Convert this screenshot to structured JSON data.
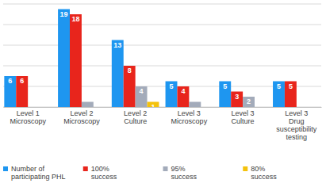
{
  "chart_data": {
    "type": "bar",
    "categories": [
      "Level 1 Microscopy",
      "Level 2 Microscopy",
      "Level 2 Culture",
      "Level 3 Microscopy",
      "Level 3 Culture",
      "Level 3 Drug susceptibility testing"
    ],
    "series": [
      {
        "name": "Number of participating PHL",
        "color": "#1e96f0",
        "values": [
          6,
          19,
          13,
          5,
          5,
          5
        ],
        "value_labels": [
          "6",
          "19",
          "13",
          "5",
          "5",
          "5"
        ]
      },
      {
        "name": "100% success",
        "color": "#e8251c",
        "values": [
          6,
          18,
          8,
          4,
          3,
          5
        ],
        "value_labels": [
          "6",
          "18",
          "8",
          "4",
          "3",
          "5"
        ]
      },
      {
        "name": "95% success",
        "color": "#a3abba",
        "values": [
          null,
          1,
          4,
          1,
          2,
          null
        ],
        "value_labels": [
          null,
          null,
          "4",
          null,
          "2",
          null
        ]
      },
      {
        "name": "80% success",
        "color": "#f4c20d",
        "values": [
          null,
          null,
          1,
          null,
          null,
          null
        ],
        "value_labels": [
          null,
          null,
          "1",
          null,
          null,
          null
        ]
      }
    ],
    "ylim": [
      0,
      20
    ],
    "yticks": [
      0,
      4,
      8,
      12,
      16,
      20
    ],
    "grid": true,
    "data_labels": true,
    "tick_labels": "x",
    "legend": "bottom"
  }
}
